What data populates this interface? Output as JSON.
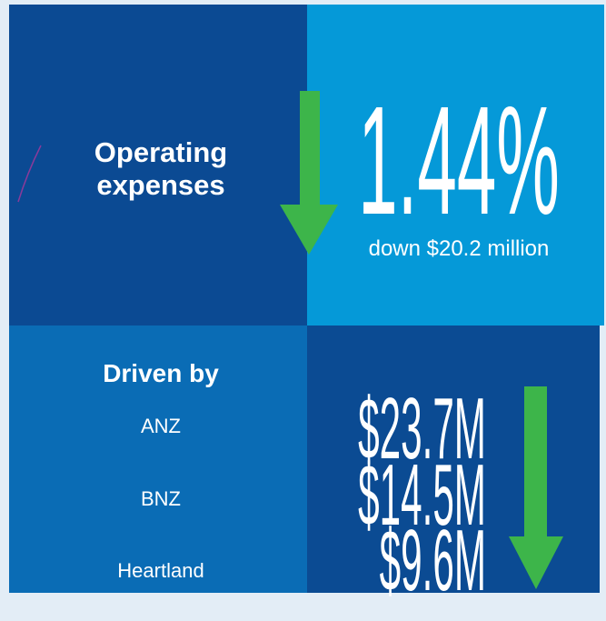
{
  "labels": {
    "title_line1": "Operating",
    "title_line2": "expenses",
    "percent": "1.44%",
    "change": "down $20.2 million",
    "driven_by": "Driven by"
  },
  "drivers": [
    {
      "name": "ANZ",
      "amount": "$23.7M"
    },
    {
      "name": "BNZ",
      "amount": "$14.5M"
    },
    {
      "name": "Heartland",
      "amount": "$9.6M"
    }
  ]
}
